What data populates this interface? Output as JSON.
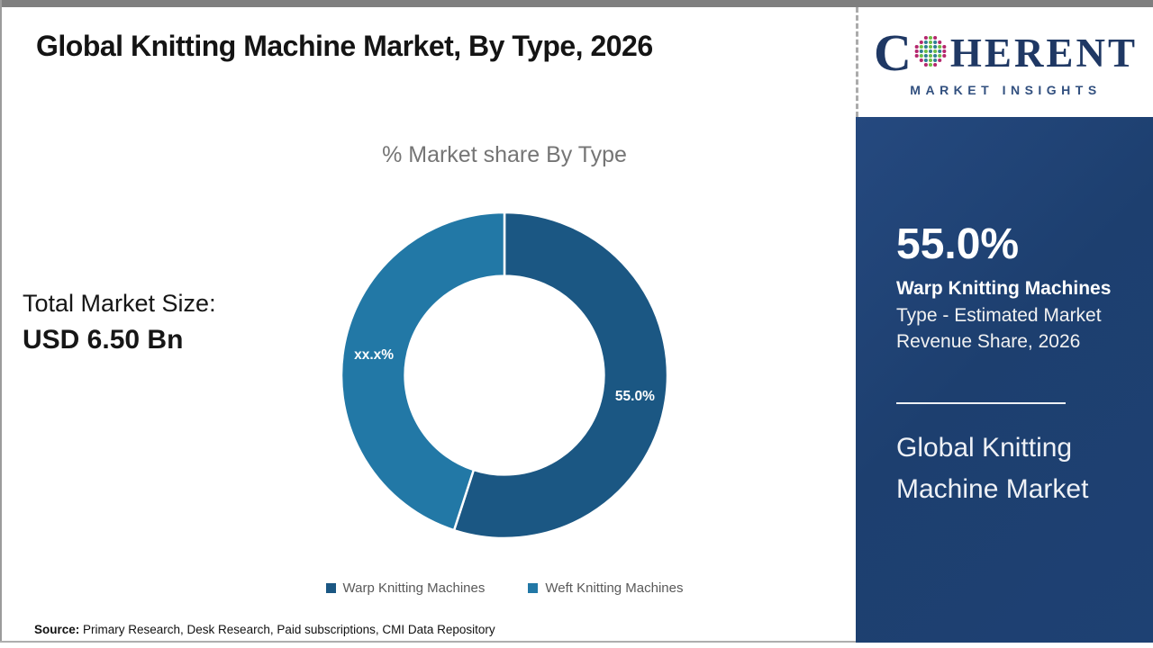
{
  "page": {
    "title": "Global Knitting Machine Market, By Type, 2026",
    "source_label": "Source:",
    "source_text": " Primary Research, Desk Research, Paid subscriptions, CMI Data Repository"
  },
  "logo": {
    "c": "C",
    "rest": "HERENT",
    "subtitle": "MARKET INSIGHTS",
    "brand_color": "#1f3864",
    "globe_colors": {
      "edge": "#b5286e",
      "teal": "#2f7f93",
      "green": "#6cbe45"
    }
  },
  "left_panel": {
    "total_label": "Total Market Size:",
    "total_value": "USD 6.50 Bn"
  },
  "chart_data": {
    "type": "pie",
    "donut": true,
    "title": "% Market share By Type",
    "categories": [
      "Warp Knitting Machines",
      "Weft Knitting Machines"
    ],
    "values": [
      55.0,
      45.0
    ],
    "slice_labels": [
      "55.0%",
      "xx.x%"
    ],
    "colors": [
      "#1b5783",
      "#2278a6"
    ],
    "start_angle_deg": 0,
    "direction": "clockwise",
    "inner_radius_ratio": 0.61,
    "legend_position": "bottom"
  },
  "sidebar": {
    "stat_value": "55.0%",
    "stat_line_bold": "Warp Knitting Machines",
    "stat_line_rest": "Type - Estimated Market Revenue Share, 2026",
    "market_name": "Global Knitting Machine Market",
    "bg_color": "#1e4173"
  }
}
